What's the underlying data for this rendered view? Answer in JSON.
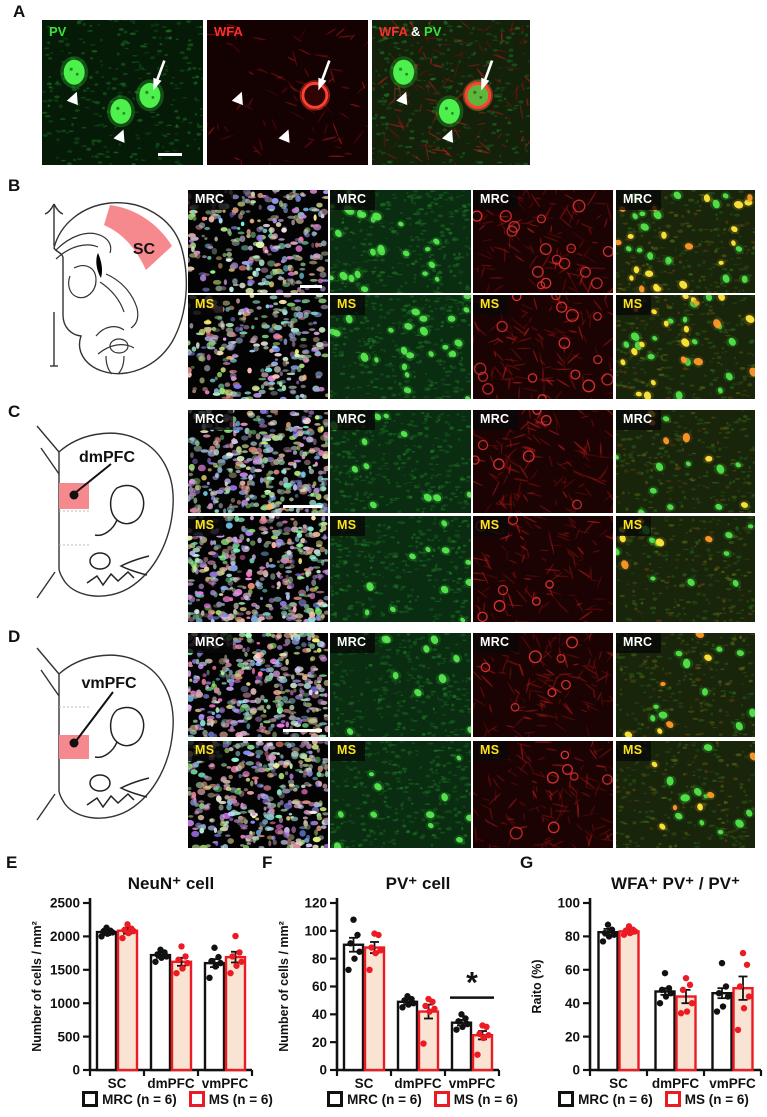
{
  "panels": {
    "a": {
      "letter": "A",
      "images": [
        {
          "name": "pv",
          "title_parts": [
            {
              "text": "PV",
              "color": "#38e238"
            }
          ]
        },
        {
          "name": "wfa",
          "title_parts": [
            {
              "text": "WFA",
              "color": "#ff2d2d"
            }
          ]
        },
        {
          "name": "wfa-pv",
          "title_parts": [
            {
              "text": "WFA",
              "color": "#ff2d2d"
            },
            {
              "text": " & ",
              "color": "#ffffff"
            },
            {
              "text": "PV",
              "color": "#38e238"
            }
          ]
        }
      ]
    },
    "b": {
      "letter": "B",
      "region": "SC",
      "rows": [
        {
          "label": "MRC",
          "color": "#ffffff"
        },
        {
          "label": "MS",
          "color": "#ffe31a"
        }
      ]
    },
    "c": {
      "letter": "C",
      "region": "dmPFC",
      "rows": [
        {
          "label": "MRC",
          "color": "#ffffff"
        },
        {
          "label": "MS",
          "color": "#ffe31a"
        }
      ]
    },
    "d": {
      "letter": "D",
      "region": "vmPFC",
      "rows": [
        {
          "label": "MRC",
          "color": "#ffffff"
        },
        {
          "label": "MS",
          "color": "#ffe31a"
        }
      ]
    },
    "e_letter": "E",
    "f_letter": "F",
    "g_letter": "G"
  },
  "colors": {
    "accent_red": "#ec1b23",
    "region_pink": "#f5898e",
    "ms_bar_fill": "#f9e4d3",
    "ms_label_yellow": "#ffe31a"
  },
  "chart_data": [
    {
      "id": "E",
      "type": "bar",
      "title": "NeuN⁺ cell",
      "ylabel": "Number of cells / mm²",
      "categories": [
        "SC",
        "dmPFC",
        "vmPFC"
      ],
      "ylim": [
        0,
        2500
      ],
      "yticks": [
        0,
        500,
        1000,
        1500,
        2000,
        2500
      ],
      "series": [
        {
          "name": "MRC (n = 6)",
          "outline": "#111111",
          "fill": "#ffffff",
          "dot_color": "#111111",
          "values": [
            2065,
            1720,
            1600
          ],
          "errors": [
            45,
            40,
            60
          ],
          "dots": [
            [
              2000,
              2040,
              2060,
              2075,
              2085,
              2130
            ],
            [
              1620,
              1680,
              1700,
              1730,
              1760,
              1800
            ],
            [
              1380,
              1550,
              1600,
              1630,
              1690,
              1830
            ]
          ]
        },
        {
          "name": "MS (n = 6)",
          "outline": "#ec1b23",
          "fill": "#f9e4d3",
          "dot_color": "#ec1b23",
          "values": [
            2085,
            1620,
            1690
          ],
          "errors": [
            45,
            60,
            80
          ],
          "dots": [
            [
              1975,
              2050,
              2080,
              2095,
              2115,
              2180
            ],
            [
              1450,
              1520,
              1600,
              1650,
              1700,
              1850
            ],
            [
              1450,
              1560,
              1620,
              1700,
              1760,
              2005
            ]
          ]
        }
      ],
      "legend": [
        {
          "label": "MRC (n = 6)",
          "color": "#111111"
        },
        {
          "label": "MS (n = 6)",
          "color": "#ec1b23"
        }
      ]
    },
    {
      "id": "F",
      "type": "bar",
      "title": "PV⁺ cell",
      "ylabel": "Number of cells / mm²",
      "categories": [
        "SC",
        "dmPFC",
        "vmPFC"
      ],
      "ylim": [
        0,
        120
      ],
      "yticks": [
        0,
        20,
        40,
        60,
        80,
        100,
        120
      ],
      "series": [
        {
          "name": "MRC (n = 6)",
          "outline": "#111111",
          "fill": "#ffffff",
          "dot_color": "#111111",
          "values": [
            90,
            49,
            34
          ],
          "errors": [
            5,
            2,
            2
          ],
          "dots": [
            [
              72,
              80,
              85,
              91,
              97,
              108
            ],
            [
              45,
              47,
              48,
              50,
              51,
              53
            ],
            [
              29,
              31,
              33,
              35,
              37,
              40
            ]
          ]
        },
        {
          "name": "MS (n = 6)",
          "outline": "#ec1b23",
          "fill": "#f9e4d3",
          "dot_color": "#ec1b23",
          "values": [
            88,
            42,
            25
          ],
          "errors": [
            4,
            5,
            3
          ],
          "dots": [
            [
              72,
              84,
              86,
              88,
              97,
              98
            ],
            [
              19,
              42,
              44,
              46,
              49,
              51
            ],
            [
              11,
              23,
              25,
              26,
              31,
              32
            ]
          ]
        }
      ],
      "significance": {
        "category": "vmPFC",
        "category_index": 2,
        "symbol": "*",
        "symbol_color": "#ec1b23",
        "bar_y": 52,
        "symbol_y": 62
      },
      "legend": [
        {
          "label": "MRC (n = 6)",
          "color": "#111111"
        },
        {
          "label": "MS (n = 6)",
          "color": "#ec1b23"
        }
      ]
    },
    {
      "id": "G",
      "type": "bar",
      "title": "WFA⁺ PV⁺ / PV⁺",
      "ylabel": "Raito (%)",
      "categories": [
        "SC",
        "dmPFC",
        "vmPFC"
      ],
      "ylim": [
        0,
        100
      ],
      "yticks": [
        0,
        20,
        40,
        60,
        80,
        100
      ],
      "series": [
        {
          "name": "MRC (n = 6)",
          "outline": "#111111",
          "fill": "#ffffff",
          "dot_color": "#111111",
          "values": [
            82.5,
            47,
            46
          ],
          "errors": [
            2,
            2,
            3
          ],
          "dots": [
            [
              77,
              80,
              81,
              82,
              84,
              87
            ],
            [
              40,
              44,
              46,
              48,
              49,
              58
            ],
            [
              35,
              38,
              44,
              46,
              50,
              64
            ]
          ]
        },
        {
          "name": "MS (n = 6)",
          "outline": "#ec1b23",
          "fill": "#f9e4d3",
          "dot_color": "#ec1b23",
          "values": [
            83,
            44,
            49
          ],
          "errors": [
            1.5,
            4,
            7
          ],
          "dots": [
            [
              81,
              82,
              83,
              83.5,
              84,
              86
            ],
            [
              34,
              35,
              40,
              48,
              51,
              55
            ],
            [
              24,
              37,
              44,
              50,
              63,
              70
            ]
          ]
        }
      ],
      "legend": [
        {
          "label": "MRC (n = 6)",
          "color": "#111111"
        },
        {
          "label": "MS (n = 6)",
          "color": "#ec1b23"
        }
      ]
    }
  ]
}
